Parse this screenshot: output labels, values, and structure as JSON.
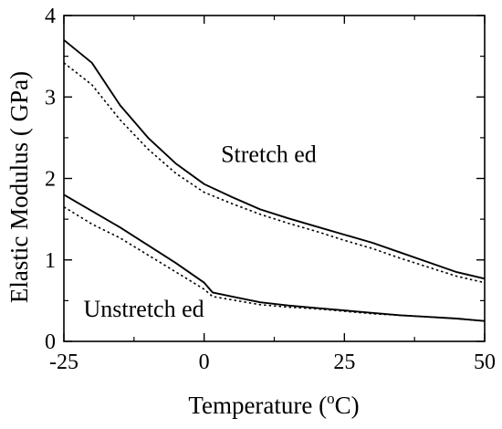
{
  "chart_data": {
    "type": "line",
    "xlabel": "Temperature ( C)",
    "xlabel_prefix": "Temperature (",
    "xlabel_sup": "o",
    "xlabel_suffix": "C)",
    "ylabel": "Elastic Modulus ( GPa)",
    "xlim": [
      -25,
      50
    ],
    "ylim": [
      0,
      4
    ],
    "xticks": [
      -25,
      0,
      25,
      50
    ],
    "yticks": [
      0,
      1,
      2,
      3,
      4
    ],
    "xtick_labels": [
      "-25",
      "0",
      "25",
      "50"
    ],
    "ytick_labels": [
      "0",
      "1",
      "2",
      "3",
      "4"
    ],
    "grid": false,
    "annotations": [
      {
        "text": "Stretch ed",
        "x": 3,
        "y": 2.2
      },
      {
        "text": "Unstretch ed",
        "x": -21.5,
        "y": 0.3
      }
    ],
    "series": [
      {
        "style": "solid",
        "x": [
          -25,
          -20,
          -15,
          -10,
          -5,
          0,
          5,
          10,
          15,
          20,
          25,
          30,
          35,
          40,
          45,
          50
        ],
        "y": [
          3.7,
          3.42,
          2.9,
          2.5,
          2.18,
          1.93,
          1.77,
          1.62,
          1.51,
          1.41,
          1.31,
          1.21,
          1.09,
          0.97,
          0.85,
          0.77
        ]
      },
      {
        "style": "dotted",
        "x": [
          -25,
          -20,
          -15,
          -10,
          -5,
          0,
          5,
          10,
          15,
          20,
          25,
          30,
          35,
          40,
          45,
          50
        ],
        "y": [
          3.42,
          3.15,
          2.72,
          2.36,
          2.06,
          1.83,
          1.69,
          1.56,
          1.45,
          1.35,
          1.24,
          1.14,
          1.02,
          0.91,
          0.8,
          0.72
        ]
      },
      {
        "style": "solid",
        "x": [
          -25,
          -20,
          -15,
          -10,
          -5,
          0,
          1.5,
          5,
          10,
          15,
          20,
          25,
          30,
          35,
          40,
          45,
          50
        ],
        "y": [
          1.8,
          1.6,
          1.4,
          1.18,
          0.96,
          0.72,
          0.6,
          0.55,
          0.48,
          0.44,
          0.41,
          0.38,
          0.35,
          0.32,
          0.3,
          0.28,
          0.25
        ]
      },
      {
        "style": "dotted",
        "x": [
          -25,
          -20,
          -15,
          -10,
          -5,
          0,
          1.5,
          5,
          10,
          15,
          20,
          25,
          30,
          35,
          40,
          45,
          50
        ],
        "y": [
          1.65,
          1.44,
          1.27,
          1.06,
          0.85,
          0.64,
          0.55,
          0.51,
          0.45,
          0.42,
          0.4,
          0.37,
          0.34,
          0.32,
          0.3,
          0.28,
          0.25
        ]
      }
    ]
  }
}
